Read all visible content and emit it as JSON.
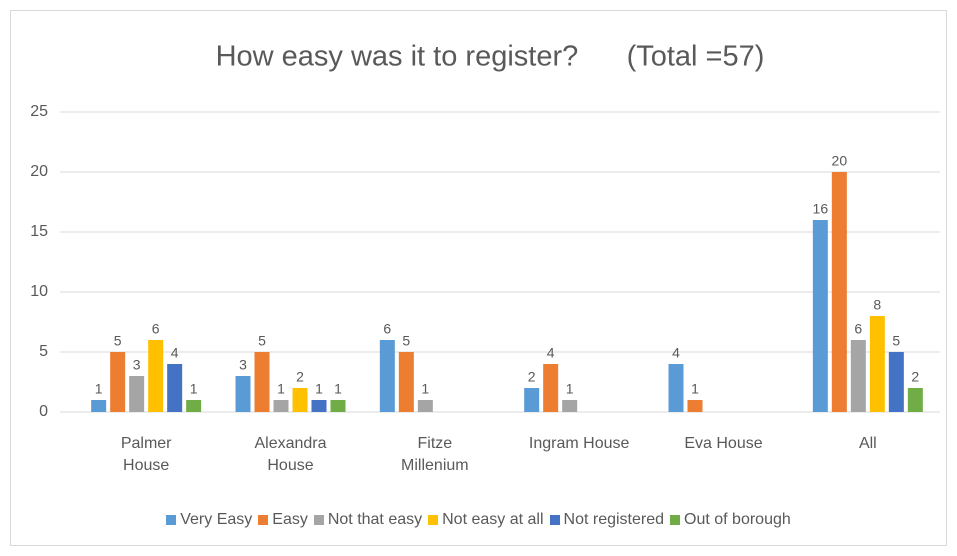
{
  "chart_data": {
    "type": "bar",
    "title": "How easy was it to register?      (Total =57)",
    "categories": [
      "Palmer House",
      "Alexandra House",
      "Fitze Millenium",
      "Ingram House",
      "Eva House",
      "All"
    ],
    "series": [
      {
        "name": "Very Easy",
        "color": "#5b9bd5",
        "values": [
          1,
          3,
          6,
          2,
          4,
          16
        ]
      },
      {
        "name": "Easy",
        "color": "#ed7d31",
        "values": [
          5,
          5,
          5,
          4,
          1,
          20
        ]
      },
      {
        "name": "Not that easy",
        "color": "#a5a5a5",
        "values": [
          3,
          1,
          1,
          1,
          null,
          6
        ]
      },
      {
        "name": "Not easy at all",
        "color": "#ffc000",
        "values": [
          6,
          2,
          null,
          null,
          null,
          8
        ]
      },
      {
        "name": "Not registered",
        "color": "#4472c4",
        "values": [
          4,
          1,
          null,
          null,
          null,
          5
        ]
      },
      {
        "name": "Out of borough",
        "color": "#70ad47",
        "values": [
          1,
          1,
          null,
          null,
          null,
          2
        ]
      }
    ],
    "ylim": [
      0,
      25
    ],
    "yticks": [
      0,
      5,
      10,
      15,
      20,
      25
    ],
    "grid": true,
    "legend": "bottom"
  }
}
